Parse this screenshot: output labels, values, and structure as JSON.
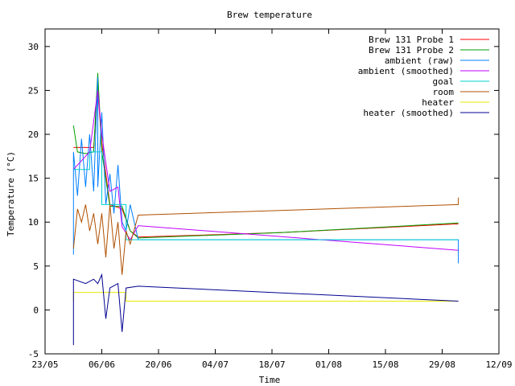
{
  "chart_data": {
    "type": "line",
    "title": "Brew temperature",
    "xlabel": "Time",
    "ylabel": "Temperature (°C)",
    "xlim": [
      "2013-05-23",
      "2013-09-12"
    ],
    "ylim": [
      -5,
      32
    ],
    "x_ticks": [
      "23/05",
      "06/06",
      "20/06",
      "04/07",
      "18/07",
      "01/08",
      "15/08",
      "29/08",
      "12/09"
    ],
    "y_ticks": [
      -5,
      0,
      5,
      10,
      15,
      20,
      25,
      30
    ],
    "grid": false,
    "legend_position": "top-right",
    "series": [
      {
        "name": "Brew 131 Probe 1",
        "color": "#ff0000",
        "points": [
          [
            "2013-05-30",
            18.5
          ],
          [
            "2013-06-02",
            18.5
          ],
          [
            "2013-06-04",
            18.5
          ],
          [
            "2013-06-05",
            25.0
          ],
          [
            "2013-06-06",
            19.0
          ],
          [
            "2013-06-08",
            12.0
          ],
          [
            "2013-06-11",
            11.5
          ],
          [
            "2013-06-13",
            9.0
          ],
          [
            "2013-06-15",
            8.3
          ],
          [
            "2013-07-20",
            8.8
          ],
          [
            "2013-09-02",
            9.8
          ]
        ]
      },
      {
        "name": "Brew 131 Probe 2",
        "color": "#00a000",
        "points": [
          [
            "2013-05-30",
            21.0
          ],
          [
            "2013-05-31",
            18.0
          ],
          [
            "2013-06-02",
            17.8
          ],
          [
            "2013-06-04",
            18.0
          ],
          [
            "2013-06-05",
            27.0
          ],
          [
            "2013-06-06",
            18.0
          ],
          [
            "2013-06-08",
            11.8
          ],
          [
            "2013-06-11",
            11.8
          ],
          [
            "2013-06-13",
            9.0
          ],
          [
            "2013-06-15",
            8.2
          ],
          [
            "2013-07-20",
            8.8
          ],
          [
            "2013-09-02",
            9.9
          ]
        ]
      },
      {
        "name": "ambient (raw)",
        "color": "#0080ff",
        "points": [
          [
            "2013-05-30",
            6.3
          ],
          [
            "2013-05-30",
            18.0
          ],
          [
            "2013-05-31",
            13.0
          ],
          [
            "2013-06-01",
            19.5
          ],
          [
            "2013-06-02",
            14.0
          ],
          [
            "2013-06-03",
            20.0
          ],
          [
            "2013-06-04",
            13.5
          ],
          [
            "2013-06-05",
            26.5
          ],
          [
            "2013-06-05",
            14.0
          ],
          [
            "2013-06-06",
            22.5
          ],
          [
            "2013-06-07",
            12.0
          ],
          [
            "2013-06-08",
            15.5
          ],
          [
            "2013-06-09",
            11.0
          ],
          [
            "2013-06-10",
            16.5
          ],
          [
            "2013-06-11",
            10.0
          ],
          [
            "2013-06-12",
            9.0
          ],
          [
            "2013-06-13",
            12.0
          ],
          [
            "2013-06-15",
            8.0
          ],
          [
            "2013-09-02",
            8.0
          ],
          [
            "2013-09-02",
            5.3
          ]
        ]
      },
      {
        "name": "ambient (smoothed)",
        "color": "#c000ff",
        "points": [
          [
            "2013-05-30",
            16.0
          ],
          [
            "2013-06-01",
            17.0
          ],
          [
            "2013-06-03",
            18.0
          ],
          [
            "2013-06-05",
            25.0
          ],
          [
            "2013-06-06",
            20.0
          ],
          [
            "2013-06-08",
            13.5
          ],
          [
            "2013-06-10",
            14.0
          ],
          [
            "2013-06-11",
            9.5
          ],
          [
            "2013-06-13",
            8.0
          ],
          [
            "2013-06-15",
            9.6
          ],
          [
            "2013-09-02",
            6.8
          ]
        ]
      },
      {
        "name": "goal",
        "color": "#00d0d0",
        "points": [
          [
            "2013-05-30",
            16.0
          ],
          [
            "2013-06-03",
            16.0
          ],
          [
            "2013-06-03",
            18.0
          ],
          [
            "2013-06-06",
            18.0
          ],
          [
            "2013-06-06",
            12.0
          ],
          [
            "2013-06-12",
            12.0
          ],
          [
            "2013-06-12",
            8.0
          ],
          [
            "2013-09-02",
            8.0
          ]
        ]
      },
      {
        "name": "room",
        "color": "#b05000",
        "points": [
          [
            "2013-05-30",
            7.0
          ],
          [
            "2013-05-31",
            11.5
          ],
          [
            "2013-06-01",
            10.0
          ],
          [
            "2013-06-02",
            12.0
          ],
          [
            "2013-06-03",
            9.0
          ],
          [
            "2013-06-04",
            11.0
          ],
          [
            "2013-06-05",
            7.5
          ],
          [
            "2013-06-06",
            11.0
          ],
          [
            "2013-06-07",
            6.0
          ],
          [
            "2013-06-08",
            12.0
          ],
          [
            "2013-06-09",
            7.0
          ],
          [
            "2013-06-10",
            10.0
          ],
          [
            "2013-06-11",
            4.0
          ],
          [
            "2013-06-12",
            9.0
          ],
          [
            "2013-06-13",
            7.5
          ],
          [
            "2013-06-15",
            10.8
          ],
          [
            "2013-09-02",
            12.0
          ],
          [
            "2013-09-02",
            12.8
          ]
        ]
      },
      {
        "name": "heater",
        "color": "#e8e800",
        "points": [
          [
            "2013-05-30",
            1.0
          ],
          [
            "2013-05-30",
            2.0
          ],
          [
            "2013-06-12",
            2.0
          ],
          [
            "2013-06-12",
            1.0
          ],
          [
            "2013-06-15",
            1.0
          ],
          [
            "2013-09-02",
            1.0
          ]
        ]
      },
      {
        "name": "heater (smoothed)",
        "color": "#000090",
        "points": [
          [
            "2013-05-30",
            -4.0
          ],
          [
            "2013-05-30",
            3.5
          ],
          [
            "2013-06-02",
            3.0
          ],
          [
            "2013-06-04",
            3.5
          ],
          [
            "2013-06-05",
            3.0
          ],
          [
            "2013-06-06",
            4.0
          ],
          [
            "2013-06-07",
            -1.0
          ],
          [
            "2013-06-08",
            2.5
          ],
          [
            "2013-06-10",
            3.0
          ],
          [
            "2013-06-11",
            -2.5
          ],
          [
            "2013-06-12",
            2.5
          ],
          [
            "2013-06-15",
            2.7
          ],
          [
            "2013-09-02",
            1.0
          ]
        ]
      }
    ]
  }
}
